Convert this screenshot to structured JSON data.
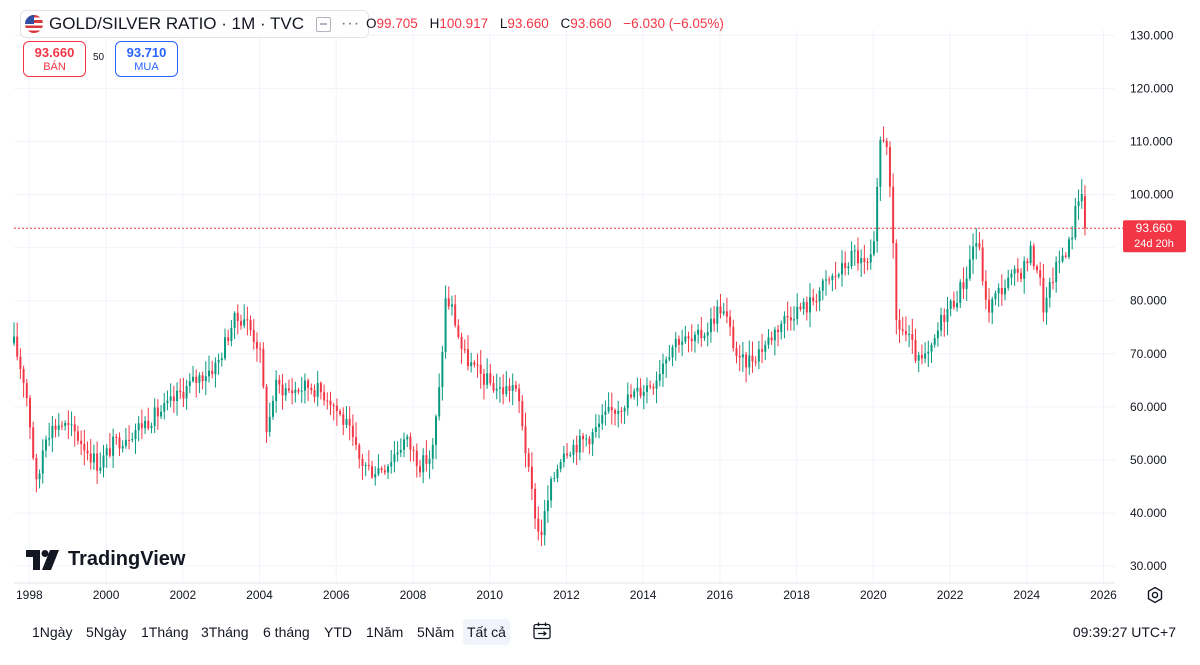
{
  "header": {
    "symbol": "GOLD/SILVER RATIO · 1M · TVC",
    "ohlc": {
      "o_label": "O",
      "o_value": "99.705",
      "h_label": "H",
      "h_value": "100.917",
      "l_label": "L",
      "l_value": "93.660",
      "c_label": "C",
      "c_value": "93.660",
      "change": "−6.030 (−6.05%)"
    }
  },
  "trade": {
    "sell_price": "93.660",
    "sell_label": "BÁN",
    "spread": "50",
    "buy_price": "93.710",
    "buy_label": "MUA"
  },
  "logo_text": "TradingView",
  "price_tag": {
    "price": "93.660",
    "countdown": "24d 20h"
  },
  "toolbar": {
    "ranges": [
      "1Ngày",
      "5Ngày",
      "1Tháng",
      "3Tháng",
      "6 tháng",
      "YTD",
      "1Năm",
      "5Năm",
      "Tất cả"
    ],
    "active_range": "Tất cả",
    "time": "09:39:27 UTC+7"
  },
  "colors": {
    "up": "#089981",
    "down": "#f23645",
    "grid": "#f0f3fa",
    "current_line": "#f23645"
  },
  "chart_data": {
    "type": "candlestick",
    "title": "GOLD/SILVER RATIO · 1M · TVC",
    "y_ticks": [
      "130.000",
      "120.000",
      "110.000",
      "100.000",
      "90.000",
      "80.000",
      "70.000",
      "60.000",
      "50.000",
      "40.000",
      "30.000"
    ],
    "x_ticks": [
      "1998",
      "2000",
      "2002",
      "2004",
      "2006",
      "2008",
      "2010",
      "2012",
      "2014",
      "2016",
      "2018",
      "2020",
      "2022",
      "2024",
      "2026"
    ],
    "ylim": [
      27,
      131
    ],
    "xlim_year": [
      1997.6,
      2026.3
    ],
    "current_price": 93.66,
    "key_points": [
      [
        1997.6,
        72
      ],
      [
        1997.9,
        64
      ],
      [
        1998.0,
        58
      ],
      [
        1998.2,
        44
      ],
      [
        1998.4,
        55
      ],
      [
        1998.8,
        57
      ],
      [
        1999.2,
        55
      ],
      [
        1999.8,
        49
      ],
      [
        2000.2,
        53
      ],
      [
        2000.8,
        56
      ],
      [
        2001.6,
        60
      ],
      [
        2002.0,
        63
      ],
      [
        2002.5,
        66
      ],
      [
        2002.9,
        68
      ],
      [
        2003.3,
        76
      ],
      [
        2003.6,
        77
      ],
      [
        2003.8,
        74
      ],
      [
        2004.0,
        71
      ],
      [
        2004.2,
        55
      ],
      [
        2004.4,
        64
      ],
      [
        2004.8,
        63
      ],
      [
        2005.3,
        64
      ],
      [
        2005.8,
        62
      ],
      [
        2006.3,
        56
      ],
      [
        2006.6,
        50
      ],
      [
        2006.9,
        48
      ],
      [
        2007.3,
        49
      ],
      [
        2007.8,
        54
      ],
      [
        2008.2,
        49
      ],
      [
        2008.5,
        51
      ],
      [
        2008.7,
        64
      ],
      [
        2008.85,
        80
      ],
      [
        2009.0,
        79
      ],
      [
        2009.3,
        70
      ],
      [
        2009.6,
        67
      ],
      [
        2009.9,
        65
      ],
      [
        2010.3,
        63
      ],
      [
        2010.6,
        64
      ],
      [
        2010.8,
        60
      ],
      [
        2011.0,
        48
      ],
      [
        2011.3,
        35
      ],
      [
        2011.6,
        45
      ],
      [
        2011.9,
        52
      ],
      [
        2012.3,
        53
      ],
      [
        2012.7,
        55
      ],
      [
        2013.0,
        58
      ],
      [
        2013.5,
        61
      ],
      [
        2013.9,
        63
      ],
      [
        2014.3,
        65
      ],
      [
        2014.6,
        70
      ],
      [
        2014.9,
        73
      ],
      [
        2015.3,
        72
      ],
      [
        2015.7,
        75
      ],
      [
        2016.0,
        79
      ],
      [
        2016.2,
        76
      ],
      [
        2016.5,
        68
      ],
      [
        2016.8,
        69
      ],
      [
        2017.2,
        72
      ],
      [
        2017.6,
        76
      ],
      [
        2017.9,
        78
      ],
      [
        2018.3,
        79
      ],
      [
        2018.6,
        82
      ],
      [
        2018.9,
        84
      ],
      [
        2019.2,
        86
      ],
      [
        2019.5,
        89
      ],
      [
        2019.8,
        86
      ],
      [
        2020.0,
        88
      ],
      [
        2020.2,
        112
      ],
      [
        2020.35,
        110
      ],
      [
        2020.5,
        92
      ],
      [
        2020.6,
        76
      ],
      [
        2020.9,
        73
      ],
      [
        2021.2,
        68
      ],
      [
        2021.5,
        70
      ],
      [
        2021.8,
        77
      ],
      [
        2022.1,
        80
      ],
      [
        2022.4,
        84
      ],
      [
        2022.65,
        92
      ],
      [
        2022.8,
        88
      ],
      [
        2022.95,
        78
      ],
      [
        2023.3,
        82
      ],
      [
        2023.6,
        84
      ],
      [
        2023.9,
        86
      ],
      [
        2024.1,
        89
      ],
      [
        2024.3,
        86
      ],
      [
        2024.45,
        78
      ],
      [
        2024.7,
        85
      ],
      [
        2024.95,
        89
      ],
      [
        2025.15,
        91
      ],
      [
        2025.3,
        100
      ],
      [
        2025.45,
        99.7
      ],
      [
        2025.55,
        93.66
      ]
    ]
  }
}
